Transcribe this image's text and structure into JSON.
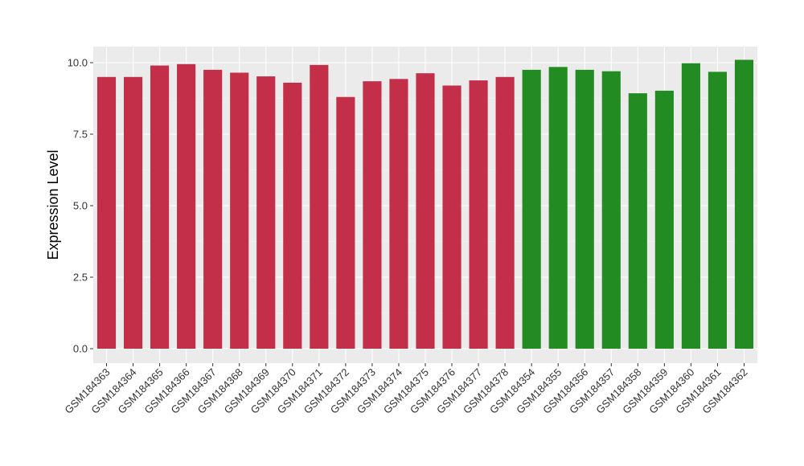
{
  "chart_data": {
    "type": "bar",
    "title": "",
    "xlabel": "",
    "ylabel": "Expression Level",
    "ylim": [
      0,
      10.3
    ],
    "yticks": [
      "0.0",
      "2.5",
      "5.0",
      "7.5",
      "10.0"
    ],
    "grid": true,
    "colors": {
      "panel": "#ebebeb",
      "grid_major": "#ffffff",
      "group_a": "#c32e48",
      "group_b": "#228b22"
    },
    "categories": [
      "GSM184363",
      "GSM184364",
      "GSM184365",
      "GSM184366",
      "GSM184367",
      "GSM184368",
      "GSM184369",
      "GSM184370",
      "GSM184371",
      "GSM184372",
      "GSM184373",
      "GSM184374",
      "GSM184375",
      "GSM184376",
      "GSM184377",
      "GSM184378",
      "GSM184354",
      "GSM184355",
      "GSM184356",
      "GSM184357",
      "GSM184358",
      "GSM184359",
      "GSM184360",
      "GSM184361",
      "GSM184362"
    ],
    "values": [
      9.5,
      9.5,
      9.9,
      9.95,
      9.75,
      9.65,
      9.52,
      9.3,
      9.92,
      8.8,
      9.35,
      9.43,
      9.63,
      9.2,
      9.38,
      9.5,
      9.75,
      9.85,
      9.75,
      9.7,
      8.93,
      9.02,
      9.98,
      9.68,
      10.1
    ],
    "bar_groups": [
      "a",
      "a",
      "a",
      "a",
      "a",
      "a",
      "a",
      "a",
      "a",
      "a",
      "a",
      "a",
      "a",
      "a",
      "a",
      "a",
      "b",
      "b",
      "b",
      "b",
      "b",
      "b",
      "b",
      "b",
      "b"
    ]
  }
}
